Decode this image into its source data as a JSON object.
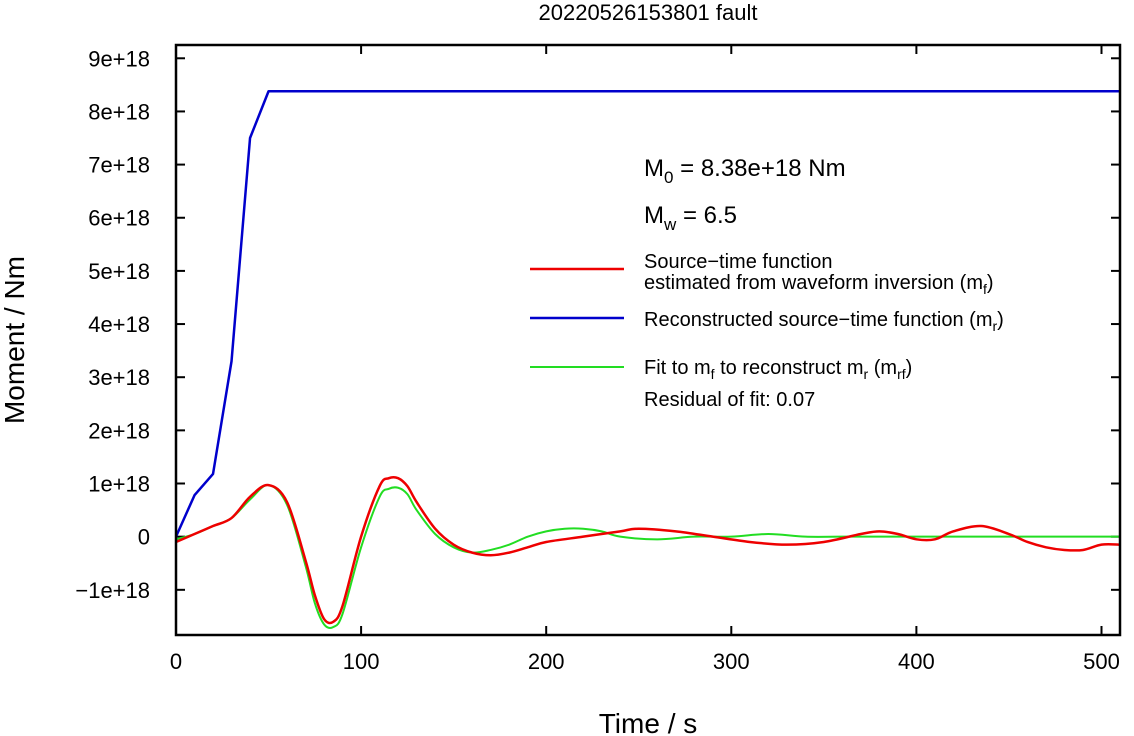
{
  "chart_data": {
    "type": "line",
    "title": "20220526153801 fault",
    "xlabel": "Time / s",
    "ylabel": "Moment / Nm",
    "xlim": [
      0,
      510
    ],
    "ylim": [
      -1.85e+18,
      9.25e+18
    ],
    "xticks": [
      0,
      100,
      200,
      300,
      400,
      500
    ],
    "xtick_labels": [
      "0",
      "100",
      "200",
      "300",
      "400",
      "500"
    ],
    "yticks": [
      -1e+18,
      0,
      1e+18,
      2e+18,
      3e+18,
      4e+18,
      5e+18,
      6e+18,
      7e+18,
      8e+18,
      9e+18
    ],
    "ytick_labels": [
      "−1e+18",
      "0",
      "1e+18",
      "2e+18",
      "3e+18",
      "4e+18",
      "5e+18",
      "6e+18",
      "7e+18",
      "8e+18",
      "9e+18"
    ],
    "grid": false,
    "legend_position": "right",
    "annotations": {
      "m0_sym": "M",
      "m0_sub": "0",
      "m0_rest": " = 8.38e+18 Nm",
      "mw_sym": "M",
      "mw_sub": "w",
      "mw_rest": " = 6.5",
      "residual": "Residual of fit: 0.07"
    },
    "legend": [
      {
        "line1": "Source−time function",
        "line2": "estimated from waveform inversion (m",
        "sub": "f",
        "close": ")",
        "color": "#ee0000"
      },
      {
        "line1": "Reconstructed source−time function (m",
        "sub": "r",
        "close": ")",
        "color": "#0000cc"
      },
      {
        "line1": "Fit to m",
        "sub1": "f",
        "mid": " to reconstruct m",
        "sub2": "r",
        "mid2": " (m",
        "sub3": "rf",
        "close": ")",
        "color": "#22dd22"
      }
    ],
    "series": [
      {
        "color": "#0000cc",
        "x": [
          0,
          10,
          20,
          30,
          40,
          50,
          510
        ],
        "y": [
          0.0,
          7.8e+17,
          1.18e+18,
          3.3e+18,
          7.5e+18,
          8.38e+18,
          8.38e+18
        ]
      },
      {
        "color": "#ee0000",
        "x": [
          0,
          10,
          20,
          30,
          40,
          50,
          60,
          70,
          75,
          80,
          85,
          90,
          100,
          110,
          115,
          120,
          125,
          130,
          140,
          150,
          160,
          170,
          180,
          190,
          200,
          220,
          240,
          250,
          270,
          290,
          310,
          330,
          350,
          370,
          380,
          390,
          400,
          410,
          420,
          435,
          450,
          460,
          470,
          480,
          490,
          500,
          510
        ],
        "y": [
          -1e+17,
          5e+16,
          2e+17,
          3.5e+17,
          7.5e+17,
          9.7e+17,
          6.5e+17,
          -4.5e+17,
          -1.1e+18,
          -1.55e+18,
          -1.6e+18,
          -1.3e+18,
          0.0,
          9.5e+17,
          1.1e+18,
          1.1e+18,
          9.5e+17,
          6.5e+17,
          1.5e+17,
          -1.5e+17,
          -3e+17,
          -3.5e+17,
          -3e+17,
          -2e+17,
          -1e+17,
          0.0,
          1e+17,
          1.5e+17,
          1e+17,
          0.0,
          -1e+17,
          -1.5e+17,
          -1e+17,
          5e+16,
          1e+17,
          5e+16,
          -5e+16,
          -5e+16,
          1e+17,
          2e+17,
          5e+16,
          -1e+17,
          -2e+17,
          -2.5e+17,
          -2.5e+17,
          -1.5e+17,
          -1.5e+17
        ]
      },
      {
        "color": "#22dd22",
        "x": [
          0,
          10,
          20,
          30,
          40,
          50,
          60,
          70,
          75,
          80,
          85,
          90,
          100,
          110,
          115,
          120,
          125,
          130,
          140,
          150,
          160,
          170,
          180,
          190,
          200,
          210,
          220,
          230,
          240,
          260,
          280,
          300,
          320,
          340,
          360,
          380,
          400,
          420,
          440,
          460,
          480,
          500,
          510
        ],
        "y": [
          -5e+16,
          5e+16,
          2e+17,
          3.5e+17,
          7e+17,
          9.7e+17,
          6e+17,
          -5.5e+17,
          -1.25e+18,
          -1.65e+18,
          -1.7e+18,
          -1.45e+18,
          -2e+17,
          7.5e+17,
          9e+17,
          9.2e+17,
          8e+17,
          5e+17,
          5e+16,
          -2e+17,
          -3e+17,
          -2.5e+17,
          -1.5e+17,
          0.0,
          1e+17,
          1.5e+17,
          1.5e+17,
          1e+17,
          0.0,
          -5e+16,
          0.0,
          0.0,
          5e+16,
          0.0,
          0.0,
          0.0,
          0.0,
          0.0,
          0.0,
          0.0,
          0.0,
          0.0,
          0.0
        ]
      }
    ]
  }
}
